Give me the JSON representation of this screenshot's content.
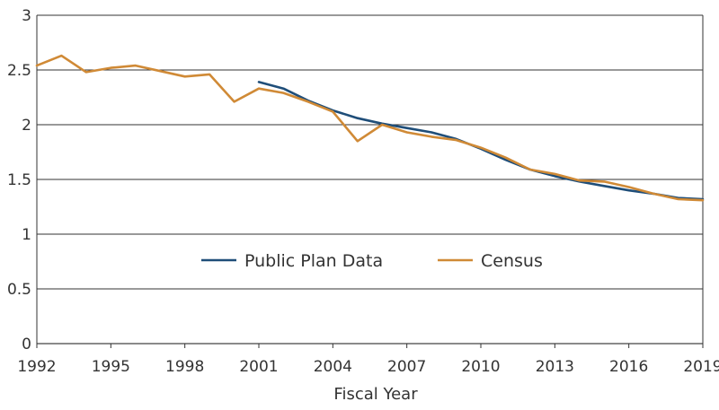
{
  "chart_data": {
    "type": "line",
    "xlabel": "Fiscal Year",
    "ylabel": "",
    "xlim": [
      1992,
      2019
    ],
    "ylim": [
      0,
      3
    ],
    "x_ticks": [
      "1992",
      "1995",
      "1998",
      "2001",
      "2004",
      "2007",
      "2010",
      "2013",
      "2016",
      "2019"
    ],
    "y_ticks": [
      "0",
      "0.5",
      "1",
      "1.5",
      "2",
      "2.5",
      "3"
    ],
    "grid": "horizontal",
    "legend_position": "center",
    "series": [
      {
        "name": "Public Plan Data",
        "color": "#1f4e79",
        "x": [
          2001,
          2002,
          2003,
          2004,
          2005,
          2006,
          2007,
          2008,
          2009,
          2010,
          2011,
          2012,
          2013,
          2014,
          2015,
          2016,
          2017,
          2018,
          2019
        ],
        "y": [
          2.39,
          2.33,
          2.22,
          2.13,
          2.06,
          2.01,
          1.97,
          1.93,
          1.87,
          1.78,
          1.68,
          1.59,
          1.53,
          1.48,
          1.44,
          1.4,
          1.37,
          1.33,
          1.32
        ]
      },
      {
        "name": "Census",
        "color": "#d08a36",
        "x": [
          1992,
          1993,
          1994,
          1995,
          1996,
          1997,
          1998,
          1999,
          2000,
          2001,
          2002,
          2003,
          2004,
          2005,
          2006,
          2007,
          2008,
          2009,
          2010,
          2011,
          2012,
          2013,
          2014,
          2015,
          2016,
          2017,
          2018,
          2019
        ],
        "y": [
          2.54,
          2.63,
          2.48,
          2.52,
          2.54,
          2.49,
          2.44,
          2.46,
          2.21,
          2.33,
          2.29,
          2.21,
          2.12,
          1.85,
          2.0,
          1.93,
          1.89,
          1.86,
          1.79,
          1.7,
          1.59,
          1.55,
          1.49,
          1.48,
          1.43,
          1.37,
          1.32,
          1.31
        ]
      }
    ]
  }
}
